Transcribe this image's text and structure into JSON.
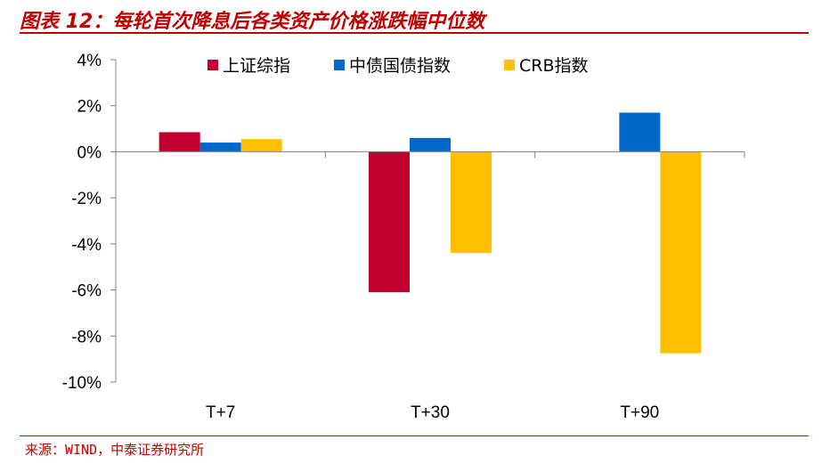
{
  "header": {
    "title": "图表 12：每轮首次降息后各类资产价格涨跌幅中位数"
  },
  "footer": {
    "source": "来源：WIND，中泰证券研究所"
  },
  "chart_data": {
    "type": "bar",
    "categories": [
      "T+7",
      "T+30",
      "T+90"
    ],
    "series": [
      {
        "name": "上证综指",
        "color": "#c0002f",
        "values": [
          0.85,
          -6.1,
          0.0
        ]
      },
      {
        "name": "中债国债指数",
        "color": "#0068c9",
        "values": [
          0.4,
          0.6,
          1.7
        ]
      },
      {
        "name": "CRB指数",
        "color": "#ffc000",
        "values": [
          0.55,
          -4.4,
          -8.75
        ]
      }
    ],
    "ylim": [
      -10,
      4
    ],
    "yticks": [
      4,
      2,
      0,
      -2,
      -4,
      -6,
      -8,
      -10
    ],
    "ytick_labels": [
      "4%",
      "2%",
      "0%",
      "-2%",
      "-4%",
      "-6%",
      "-8%",
      "-10%"
    ],
    "legend_position": "top",
    "grid": false
  }
}
